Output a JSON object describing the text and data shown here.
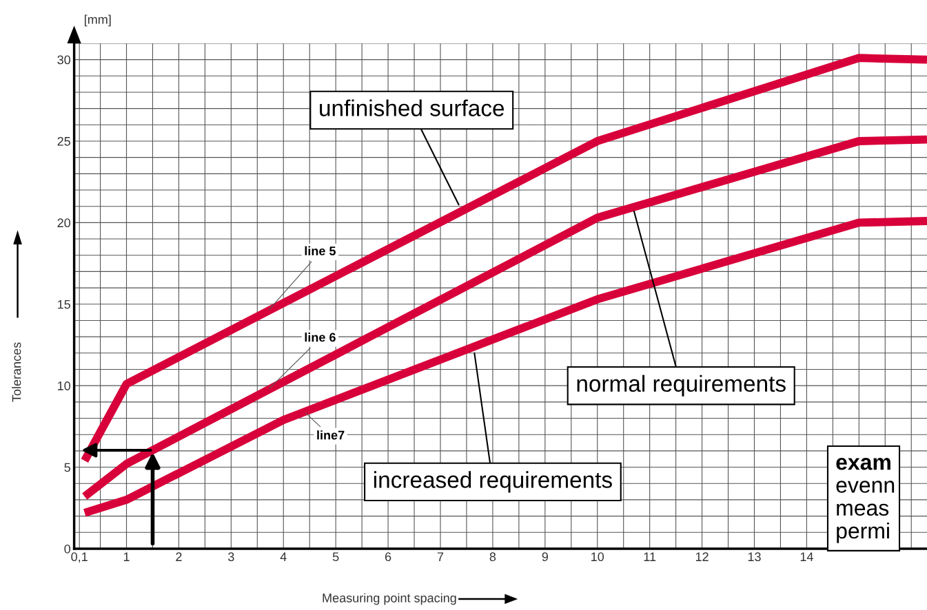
{
  "chart_data": {
    "type": "line",
    "xlabel": "Measuring point spacing",
    "ylabel": "Tolerances",
    "xlim": [
      0,
      16.3
    ],
    "ylim": [
      0,
      31
    ],
    "xticks": [
      {
        "value": 0.1,
        "label": "0,1"
      },
      1,
      2,
      3,
      4,
      5,
      6,
      7,
      8,
      9,
      10,
      11,
      12,
      13,
      14
    ],
    "yticks": [
      0,
      5,
      10,
      15,
      20,
      25,
      30
    ],
    "grid": true,
    "line_style": "solid",
    "marker": "none",
    "series": [
      {
        "name": "line 5",
        "color": "#d8003a",
        "x": [
          0.2,
          1,
          10,
          15,
          16.3
        ],
        "values": [
          5.4,
          10.1,
          25.0,
          30.1,
          30.0
        ]
      },
      {
        "name": "line 6",
        "color": "#d8003a",
        "x": [
          0.2,
          1,
          10,
          15,
          16.3
        ],
        "values": [
          3.2,
          5.2,
          20.3,
          25.0,
          25.1
        ]
      },
      {
        "name": "line7",
        "color": "#d8003a",
        "x": [
          0.2,
          1,
          4,
          10,
          15,
          16.3
        ],
        "values": [
          2.2,
          3.0,
          7.9,
          15.3,
          20.0,
          20.1
        ]
      }
    ],
    "annotations": [
      "[mm]",
      {
        "text": "unfinished surface",
        "x": 7.35,
        "y": 21.1
      },
      {
        "text": "normal requirements",
        "x": 10.7,
        "y": 20.7
      },
      {
        "text": "increased requirements",
        "x": 7.65,
        "y": 12.0
      },
      "exam\nevenn\nmeas\npermi"
    ]
  }
}
